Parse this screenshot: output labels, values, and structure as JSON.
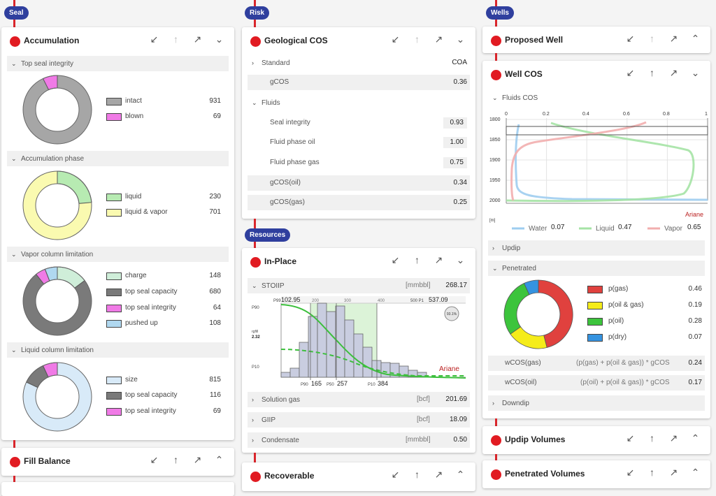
{
  "seal": {
    "pill": "Seal",
    "accumulation": {
      "title": "Accumulation",
      "sections": [
        {
          "label": "Top seal integrity",
          "items": [
            {
              "label": "intact",
              "value": "931",
              "color": "#a6a6a6"
            },
            {
              "label": "blown",
              "value": "69",
              "color": "#f07ae6"
            }
          ]
        },
        {
          "label": "Accumulation phase",
          "items": [
            {
              "label": "liquid",
              "value": "230",
              "color": "#b7ebb2"
            },
            {
              "label": "liquid & vapor",
              "value": "701",
              "color": "#fafab0"
            }
          ]
        },
        {
          "label": "Vapor column limitation",
          "items": [
            {
              "label": "charge",
              "value": "148",
              "color": "#cfeed9"
            },
            {
              "label": "top seal capacity",
              "value": "680",
              "color": "#7a7a7a"
            },
            {
              "label": "top seal integrity",
              "value": "64",
              "color": "#f07ae6"
            },
            {
              "label": "pushed up",
              "value": "108",
              "color": "#b0d8f0"
            }
          ]
        },
        {
          "label": "Liquid column limitation",
          "items": [
            {
              "label": "size",
              "value": "815",
              "color": "#d8eaf8"
            },
            {
              "label": "top seal capacity",
              "value": "116",
              "color": "#7a7a7a"
            },
            {
              "label": "top seal integrity",
              "value": "69",
              "color": "#f07ae6"
            }
          ]
        }
      ]
    },
    "fill_balance": {
      "title": "Fill Balance"
    }
  },
  "risk": {
    "pill": "Risk",
    "geological_cos": {
      "title": "Geological COS",
      "standard": {
        "label": "Standard",
        "value": "COA"
      },
      "gcos": {
        "label": "gCOS",
        "value": "0.36"
      },
      "fluids": {
        "label": "Fluids"
      },
      "rows": [
        {
          "label": "Seal integrity",
          "value": "0.93"
        },
        {
          "label": "Fluid phase oil",
          "value": "1.00"
        },
        {
          "label": "Fluid phase gas",
          "value": "0.75"
        },
        {
          "label": "gCOS(oil)",
          "value": "0.34"
        },
        {
          "label": "gCOS(gas)",
          "value": "0.25"
        }
      ]
    }
  },
  "resources": {
    "pill": "Resources",
    "in_place": {
      "title": "In-Place",
      "stoiip": {
        "label": "STOIIP",
        "unit": "[mmbbl]",
        "value": "268.17"
      },
      "chart": {
        "p99_label": "P99",
        "p99": "102.95",
        "p1_label": "500 P1",
        "p1": "537.09",
        "ticks": [
          "200",
          "300",
          "400"
        ],
        "p90_axis": "P90",
        "p10_axis": "P10",
        "mid_label": "rgfill",
        "mid_value": "2.32",
        "badge": "93.1%",
        "p90_bottom_label": "P90",
        "p90_bottom": "165",
        "p50_bottom_label": "P50",
        "p50_bottom": "257",
        "p10_bottom_label": "P10",
        "p10_bottom": "384",
        "watermark": "Ariane"
      },
      "rows": [
        {
          "label": "Solution gas",
          "unit": "[bcf]",
          "value": "201.69"
        },
        {
          "label": "GIIP",
          "unit": "[bcf]",
          "value": "18.09"
        },
        {
          "label": "Condensate",
          "unit": "[mmbbl]",
          "value": "0.50"
        }
      ]
    },
    "recoverable": {
      "title": "Recoverable"
    }
  },
  "wells": {
    "pill": "Wells",
    "proposed_well": {
      "title": "Proposed Well"
    },
    "well_cos": {
      "title": "Well COS",
      "fluids_cos": "Fluids COS",
      "x_ticks": [
        "0",
        "0.2",
        "0.4",
        "0.6",
        "0.8",
        "1"
      ],
      "y_ticks": [
        "1800",
        "1850",
        "1900",
        "1950",
        "2000"
      ],
      "y_unit": "[m]",
      "watermark": "Ariane",
      "legend": [
        {
          "label": "Water",
          "value": "0.07",
          "color": "#9ecdf0"
        },
        {
          "label": "Liquid",
          "value": "0.47",
          "color": "#a5e3a5"
        },
        {
          "label": "Vapor",
          "value": "0.65",
          "color": "#f2aeae"
        }
      ],
      "updip": "Updip",
      "penetrated": "Penetrated",
      "pie": [
        {
          "label": "p(gas)",
          "value": "0.46",
          "color": "#e0413e"
        },
        {
          "label": "p(oil & gas)",
          "value": "0.19",
          "color": "#f5ec1a"
        },
        {
          "label": "p(oil)",
          "value": "0.28",
          "color": "#3cc43c"
        },
        {
          "label": "p(dry)",
          "value": "0.07",
          "color": "#3593e0"
        }
      ],
      "wcos_gas": {
        "label": "wCOS(gas)",
        "formula": "(p(gas) + p(oil & gas)) * gCOS",
        "value": "0.24"
      },
      "wcos_oil": {
        "label": "wCOS(oil)",
        "formula": "(p(oil) + p(oil & gas)) * gCOS",
        "value": "0.17"
      },
      "downdip": "Downdip"
    },
    "updip_volumes": {
      "title": "Updip Volumes"
    },
    "penetrated_volumes": {
      "title": "Penetrated Volumes"
    }
  },
  "icons": {
    "collapse": "↙",
    "up": "↑",
    "expand": "↗",
    "chevron_down": "⌄",
    "chevron_up": "^"
  }
}
